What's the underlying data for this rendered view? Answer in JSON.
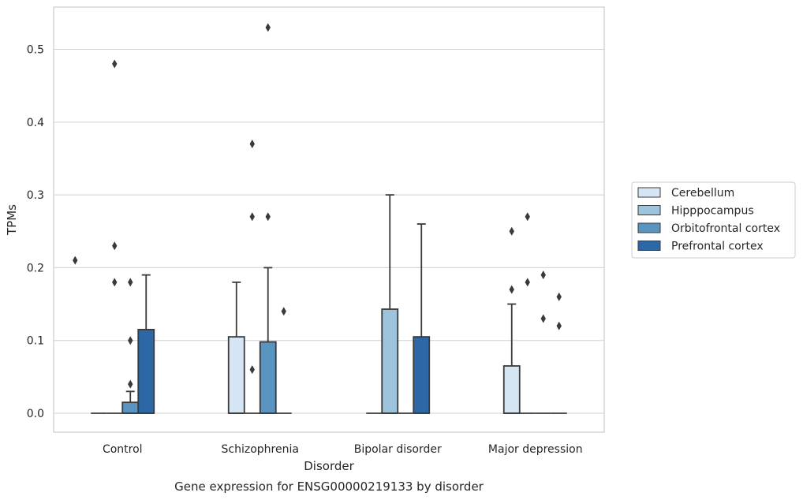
{
  "chart_data": {
    "type": "box",
    "xlabel": "Disorder",
    "ylabel": "TPMs",
    "caption": "Gene expression for ENSG00000219133 by disorder",
    "ylim": [
      -0.026,
      0.558
    ],
    "yticks": [
      "0.0",
      "0.1",
      "0.2",
      "0.3",
      "0.4",
      "0.5"
    ],
    "grid": true,
    "legend_placement": "right",
    "categories": [
      "Control",
      "Schizophrenia",
      "Bipolar disorder",
      "Major depression"
    ],
    "series": [
      {
        "name": "Cerebellum",
        "color": "#d6e5f3",
        "boxes": [
          {
            "q1": 0,
            "median": 0,
            "q3": 0,
            "whisker_low": 0,
            "whisker_high": 0,
            "outliers": []
          },
          {
            "q1": 0,
            "median": 0,
            "q3": 0.105,
            "whisker_low": 0,
            "whisker_high": 0.18,
            "outliers": []
          },
          {
            "q1": 0,
            "median": 0,
            "q3": 0,
            "whisker_low": 0,
            "whisker_high": 0,
            "outliers": []
          },
          {
            "q1": 0,
            "median": 0,
            "q3": 0.065,
            "whisker_low": 0,
            "whisker_high": 0.15,
            "outliers": [
              0.17,
              0.25
            ]
          }
        ]
      },
      {
        "name": "Hipppocampus",
        "color": "#9dc3dd",
        "boxes": [
          {
            "q1": 0,
            "median": 0,
            "q3": 0,
            "whisker_low": 0,
            "whisker_high": 0,
            "outliers": [
              0.18,
              0.23,
              0.48
            ]
          },
          {
            "q1": 0,
            "median": 0,
            "q3": 0,
            "whisker_low": 0,
            "whisker_high": 0,
            "outliers": [
              0.06,
              0.27,
              0.37
            ]
          },
          {
            "q1": 0,
            "median": 0,
            "q3": 0.143,
            "whisker_low": 0,
            "whisker_high": 0.3,
            "outliers": []
          },
          {
            "q1": 0,
            "median": 0,
            "q3": 0,
            "whisker_low": 0,
            "whisker_high": 0,
            "outliers": [
              0.18,
              0.27
            ]
          }
        ]
      },
      {
        "name": "Orbitofrontal cortex",
        "color": "#5a94c1",
        "boxes": [
          {
            "q1": 0,
            "median": 0,
            "q3": 0.015,
            "whisker_low": 0,
            "whisker_high": 0.03,
            "outliers": [
              0.04,
              0.1,
              0.18
            ]
          },
          {
            "q1": 0,
            "median": 0,
            "q3": 0.098,
            "whisker_low": 0,
            "whisker_high": 0.2,
            "outliers": [
              0.27,
              0.53
            ]
          },
          {
            "q1": 0,
            "median": 0,
            "q3": 0,
            "whisker_low": 0,
            "whisker_high": 0,
            "outliers": []
          },
          {
            "q1": 0,
            "median": 0,
            "q3": 0,
            "whisker_low": 0,
            "whisker_high": 0,
            "outliers": [
              0.13,
              0.19
            ]
          }
        ]
      },
      {
        "name": "Prefrontal cortex",
        "color": "#2c68a6",
        "boxes": [
          {
            "q1": 0,
            "median": 0,
            "q3": 0.115,
            "whisker_low": 0,
            "whisker_high": 0.19,
            "outliers": []
          },
          {
            "q1": 0,
            "median": 0,
            "q3": 0,
            "whisker_low": 0,
            "whisker_high": 0,
            "outliers": [
              0.14
            ]
          },
          {
            "q1": 0,
            "median": 0,
            "q3": 0.105,
            "whisker_low": 0,
            "whisker_high": 0.26,
            "outliers": []
          },
          {
            "q1": 0,
            "median": 0,
            "q3": 0,
            "whisker_low": 0,
            "whisker_high": 0,
            "outliers": [
              0.12,
              0.16
            ]
          }
        ]
      }
    ],
    "extra_outliers": [
      {
        "category": 0,
        "x_offset": -1.5,
        "value": 0.21
      }
    ]
  }
}
